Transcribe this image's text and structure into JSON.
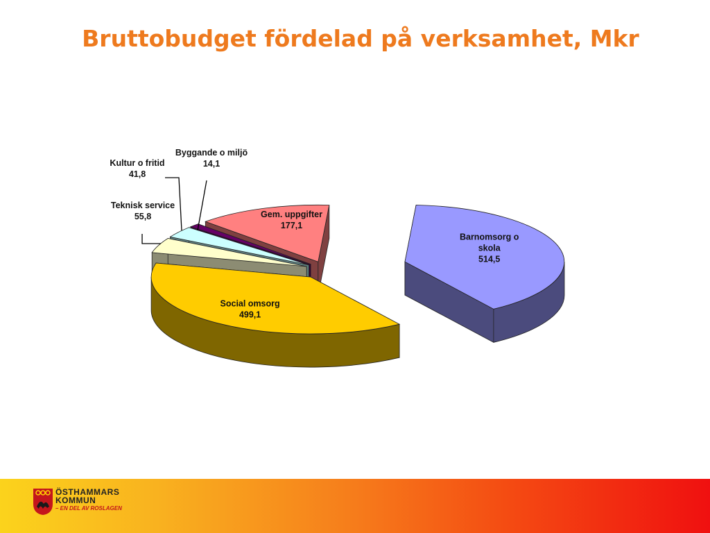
{
  "title": "Bruttobudget fördelad på verksamhet, Mkr",
  "chart_data": {
    "type": "pie",
    "title": "Bruttobudget fördelad på verksamhet, Mkr",
    "unit": "Mkr",
    "slices": [
      {
        "label": "Barnomsorg o skola",
        "label_lines": [
          "Barnomsorg o",
          "skola"
        ],
        "value_text": "514,5",
        "value": 514.5,
        "color": "#9999ff",
        "side_color": "#4b4b7d"
      },
      {
        "label": "Social omsorg",
        "label_lines": [
          "Social omsorg"
        ],
        "value_text": "499,1",
        "value": 499.1,
        "color": "#ffcc00",
        "side_color": "#7f6600"
      },
      {
        "label": "Teknisk service",
        "label_lines": [
          "Teknisk service"
        ],
        "value_text": "55,8",
        "value": 55.8,
        "color": "#ffffcc",
        "side_color": "#8c8c73"
      },
      {
        "label": "Kultur o fritid",
        "label_lines": [
          "Kultur o fritid"
        ],
        "value_text": "41,8",
        "value": 41.8,
        "color": "#ccffff",
        "side_color": "#5f7f7f"
      },
      {
        "label": "Byggande o miljö",
        "label_lines": [
          "Byggande o miljö"
        ],
        "value_text": "14,1",
        "value": 14.1,
        "color": "#660066",
        "side_color": "#330033"
      },
      {
        "label": "Gem. uppgifter",
        "label_lines": [
          "Gem. uppgifter"
        ],
        "value_text": "177,1",
        "value": 177.1,
        "color": "#ff8080",
        "side_color": "#7f4040"
      }
    ]
  },
  "logo": {
    "line1": "ÖSTHAMMARS",
    "line2": "KOMMUN",
    "line3": "– EN DEL AV ROSLAGEN"
  }
}
